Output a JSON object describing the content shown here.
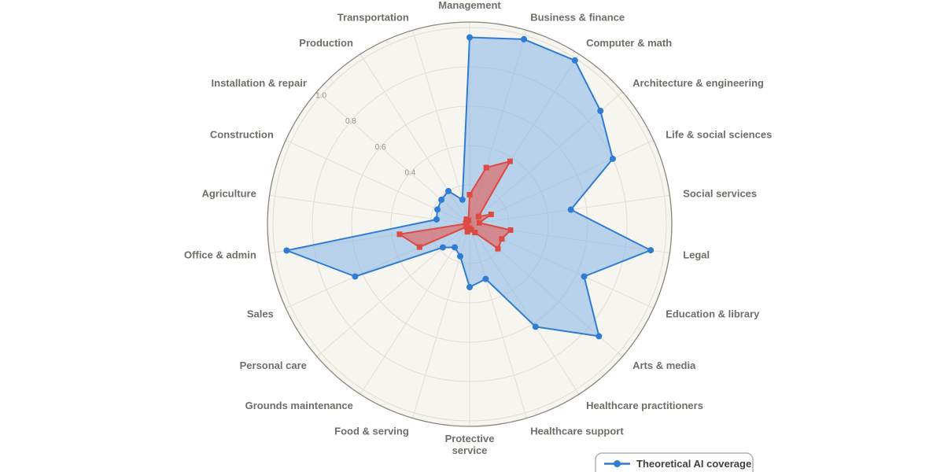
{
  "chart_data": {
    "type": "radar",
    "categories": [
      "Management",
      "Business & finance",
      "Computer & math",
      "Architecture & engineering",
      "Life & social sciences",
      "Social services",
      "Legal",
      "Education & library",
      "Arts & media",
      "Healthcare practitioners",
      "Healthcare support",
      "Protective service",
      "Food & serving",
      "Grounds maintenance",
      "Personal care",
      "Sales",
      "Office & admin",
      "Agriculture",
      "Construction",
      "Installation & repair",
      "Production",
      "Transportation"
    ],
    "series": [
      {
        "name": "Theoretical AI coverage",
        "marker": "circle",
        "stroke": "#2f7cd2",
        "fill": "rgba(123,175,232,0.5)",
        "values": [
          0.95,
          0.98,
          0.99,
          0.88,
          0.8,
          0.52,
          0.93,
          0.64,
          0.87,
          0.62,
          0.29,
          0.32,
          0.17,
          0.14,
          0.18,
          0.64,
          0.94,
          0.17,
          0.18,
          0.19,
          0.2,
          0.13
        ]
      },
      {
        "name": "",
        "marker": "square",
        "stroke": "#dc4a42",
        "fill": "rgba(231,76,68,0.55)",
        "values": [
          0.15,
          0.3,
          0.38,
          0.06,
          0.12,
          0.05,
          0.21,
          0.18,
          0.19,
          0.05,
          0.03,
          0.02,
          0.04,
          0.02,
          0.02,
          0.28,
          0.36,
          0.02,
          0.02,
          0.02,
          0.03,
          0.02
        ]
      }
    ],
    "radial_ticks": [
      "0.4",
      "0.6",
      "0.8",
      "1.0"
    ],
    "radial_gridlines": [
      0.2,
      0.4,
      0.6,
      0.8,
      1.0
    ],
    "radial_range": [
      0,
      1.03
    ],
    "grid": true,
    "legend_position": "bottom-right"
  },
  "legend": {
    "items": [
      {
        "label": "Theoretical AI coverage",
        "color": "#2f7cd2"
      }
    ]
  },
  "colors": {
    "page_background": "#ffffff",
    "polar_background": "#f7f5f0",
    "gridline": "#e2ded6",
    "outer_ring": "#87857d",
    "category_label": "#6e6e68",
    "tick_label": "#98927f",
    "series_blue": "#2f7cd2",
    "series_red": "#dc4a42",
    "legend_border": "#b0b0b0"
  }
}
